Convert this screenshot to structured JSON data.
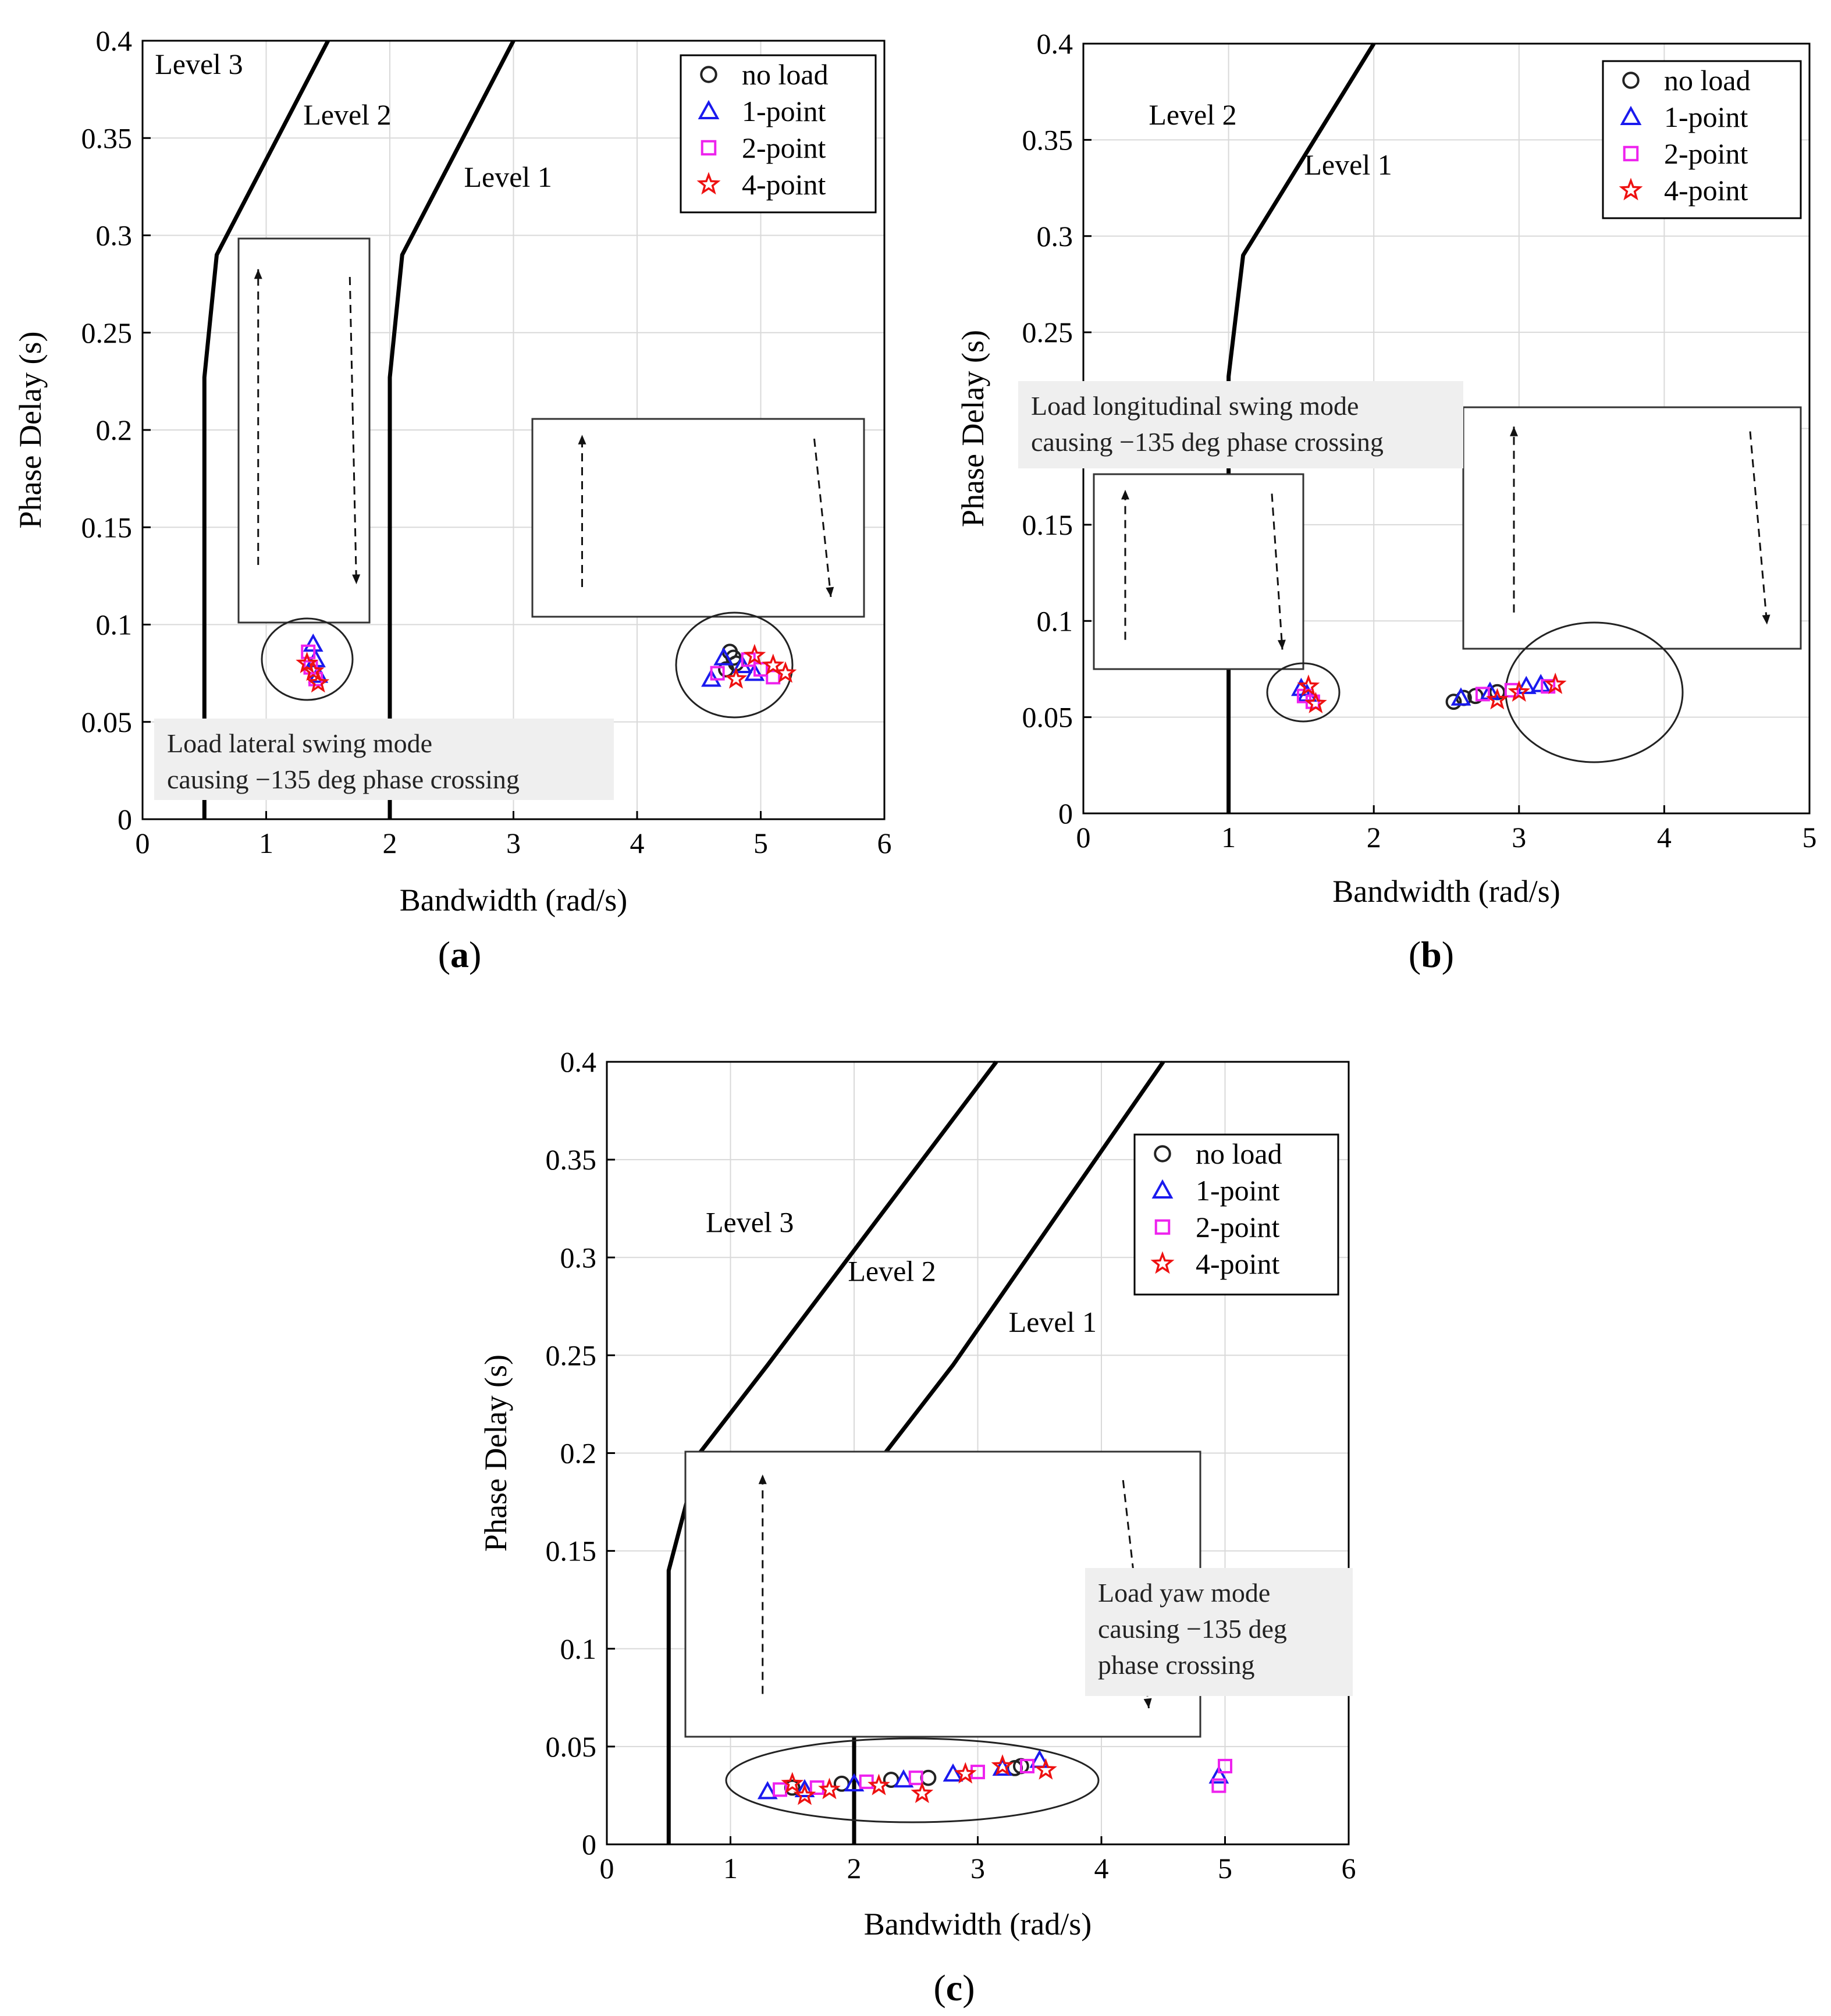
{
  "colors": {
    "no_load": "#222222",
    "one_point": "#1a1aee",
    "two_point": "#ee22ee",
    "four_point": "#ee1111",
    "grid": "#d9d9d9",
    "note_bg": "#efefef",
    "shade": "#dcdcdc"
  },
  "chart_data": [
    {
      "id": "a",
      "type": "scatter",
      "caption": "a",
      "xlabel": "Bandwidth (rad/s)",
      "ylabel": "Phase Delay (s)",
      "xlim": [
        0,
        6
      ],
      "ylim": [
        0,
        0.4
      ],
      "xticks": [
        "0",
        "1",
        "2",
        "3",
        "4",
        "5",
        "6"
      ],
      "yticks": [
        "0",
        "0.05",
        "0.1",
        "0.15",
        "0.2",
        "0.25",
        "0.3",
        "0.35",
        "0.4"
      ],
      "grid": true,
      "legend": {
        "position": "top-right",
        "entries": [
          "no load",
          "1-point",
          "2-point",
          "4-point"
        ]
      },
      "boundaries": [
        [
          [
            0.5,
            0
          ],
          [
            0.5,
            0.227
          ],
          [
            0.6,
            0.29
          ],
          [
            1.5,
            0.4
          ]
        ],
        [
          [
            2.0,
            0
          ],
          [
            2.0,
            0.227
          ],
          [
            2.1,
            0.29
          ],
          [
            3.0,
            0.4
          ]
        ]
      ],
      "levels": [
        {
          "text": "Level 3",
          "x": 0.1,
          "y": 0.383
        },
        {
          "text": "Level 2",
          "x": 1.3,
          "y": 0.357
        },
        {
          "text": "Level 1",
          "x": 2.6,
          "y": 0.325
        }
      ],
      "annotation": "Load lateral swing mode causing −135 deg phase crossing",
      "annotation_lines": [
        "Load lateral swing mode",
        "causing −135 deg phase crossing"
      ],
      "series": [
        {
          "name": "no load",
          "marker": "o",
          "x": [
            4.75,
            4.78,
            4.8,
            4.72
          ],
          "y": [
            0.086,
            0.083,
            0.08,
            0.077
          ]
        },
        {
          "name": "1-point",
          "marker": "^",
          "x": [
            1.38,
            1.4,
            1.42,
            4.7,
            4.85,
            4.95,
            4.6
          ],
          "y": [
            0.09,
            0.082,
            0.074,
            0.083,
            0.079,
            0.075,
            0.072
          ]
        },
        {
          "name": "2-point",
          "marker": "s",
          "x": [
            1.34,
            1.36,
            1.4,
            4.9,
            5.0,
            5.1,
            4.65
          ],
          "y": [
            0.086,
            0.078,
            0.072,
            0.082,
            0.077,
            0.073,
            0.075
          ]
        },
        {
          "name": "4-point",
          "marker": "*",
          "x": [
            1.33,
            1.38,
            1.42,
            4.95,
            5.1,
            5.2,
            4.8
          ],
          "y": [
            0.08,
            0.076,
            0.07,
            0.084,
            0.079,
            0.075,
            0.072
          ]
        }
      ]
    },
    {
      "id": "b",
      "type": "scatter",
      "caption": "b",
      "xlabel": "Bandwidth (rad/s)",
      "ylabel": "Phase Delay (s)",
      "xlim": [
        0,
        5
      ],
      "ylim": [
        0,
        0.4
      ],
      "xticks": [
        "0",
        "1",
        "2",
        "3",
        "4",
        "5"
      ],
      "yticks": [
        "0",
        "0.05",
        "0.1",
        "0.15",
        "0.2",
        "0.25",
        "0.3",
        "0.35",
        "0.4"
      ],
      "grid": true,
      "legend": {
        "position": "top-right",
        "entries": [
          "no load",
          "1-point",
          "2-point",
          "4-point"
        ]
      },
      "boundaries": [
        [
          [
            1.0,
            0
          ],
          [
            1.0,
            0.227
          ],
          [
            1.1,
            0.29
          ],
          [
            2.0,
            0.4
          ]
        ]
      ],
      "levels": [
        {
          "text": "Level 2",
          "x": 0.45,
          "y": 0.358
        },
        {
          "text": "Level 1",
          "x": 1.52,
          "y": 0.332
        }
      ],
      "annotation": "Load longitudinal swing mode causing −135 deg phase crossing",
      "annotation_lines": [
        "Load longitudinal swing mode",
        "causing −135 deg phase crossing"
      ],
      "series": [
        {
          "name": "no load",
          "marker": "o",
          "x": [
            2.55,
            2.62,
            2.7,
            2.85
          ],
          "y": [
            0.058,
            0.06,
            0.061,
            0.063
          ]
        },
        {
          "name": "1-point",
          "marker": "^",
          "x": [
            1.5,
            1.54,
            2.6,
            2.8,
            3.05,
            3.15
          ],
          "y": [
            0.065,
            0.062,
            0.06,
            0.063,
            0.066,
            0.067
          ]
        },
        {
          "name": "2-point",
          "marker": "s",
          "x": [
            1.52,
            1.58,
            2.75,
            2.95,
            3.2
          ],
          "y": [
            0.061,
            0.058,
            0.062,
            0.064,
            0.066
          ]
        },
        {
          "name": "4-point",
          "marker": "*",
          "x": [
            1.55,
            1.6,
            2.85,
            3.0,
            3.25
          ],
          "y": [
            0.066,
            0.057,
            0.059,
            0.063,
            0.067
          ]
        }
      ]
    },
    {
      "id": "c",
      "type": "scatter",
      "caption": "c",
      "xlabel": "Bandwidth (rad/s)",
      "ylabel": "Phase Delay (s)",
      "xlim": [
        0,
        6
      ],
      "ylim": [
        0,
        0.4
      ],
      "xticks": [
        "0",
        "1",
        "2",
        "3",
        "4",
        "5",
        "6"
      ],
      "yticks": [
        "0",
        "0.05",
        "0.1",
        "0.15",
        "0.2",
        "0.25",
        "0.3",
        "0.35",
        "0.4"
      ],
      "grid": true,
      "legend": {
        "position": "top-right",
        "entries": [
          "no load",
          "1-point",
          "2-point",
          "4-point"
        ]
      },
      "boundaries": [
        [
          [
            0.5,
            0
          ],
          [
            0.5,
            0.14
          ],
          [
            0.75,
            0.2
          ],
          [
            1.3,
            0.245
          ],
          [
            3.15,
            0.4
          ]
        ],
        [
          [
            2.0,
            0
          ],
          [
            2.0,
            0.14
          ],
          [
            2.25,
            0.2
          ],
          [
            2.8,
            0.245
          ],
          [
            4.5,
            0.4
          ]
        ]
      ],
      "levels": [
        {
          "text": "Level 3",
          "x": 0.8,
          "y": 0.313
        },
        {
          "text": "Level 2",
          "x": 1.95,
          "y": 0.288
        },
        {
          "text": "Level 1",
          "x": 3.25,
          "y": 0.262
        }
      ],
      "annotation": "Load yaw mode causing −135 deg phase crossing",
      "annotation_lines": [
        "Load yaw mode",
        "causing −135 deg",
        "phase crossing"
      ],
      "series": [
        {
          "name": "no load",
          "marker": "o",
          "x": [
            1.5,
            1.9,
            2.3,
            2.6,
            3.3,
            3.35
          ],
          "y": [
            0.029,
            0.031,
            0.033,
            0.034,
            0.039,
            0.04
          ]
        },
        {
          "name": "1-point",
          "marker": "^",
          "x": [
            1.3,
            1.6,
            2.0,
            2.4,
            2.8,
            3.2,
            3.5,
            4.95
          ],
          "y": [
            0.027,
            0.028,
            0.031,
            0.033,
            0.036,
            0.039,
            0.043,
            0.035
          ]
        },
        {
          "name": "2-point",
          "marker": "s",
          "x": [
            1.4,
            1.7,
            2.1,
            2.5,
            3.0,
            3.4,
            4.95,
            5.0
          ],
          "y": [
            0.028,
            0.029,
            0.032,
            0.034,
            0.037,
            0.04,
            0.03,
            0.04
          ]
        },
        {
          "name": "4-point",
          "marker": "*",
          "x": [
            1.5,
            1.6,
            1.8,
            2.2,
            2.55,
            2.9,
            3.2,
            3.55
          ],
          "y": [
            0.031,
            0.025,
            0.028,
            0.03,
            0.026,
            0.036,
            0.04,
            0.038
          ]
        }
      ]
    }
  ]
}
